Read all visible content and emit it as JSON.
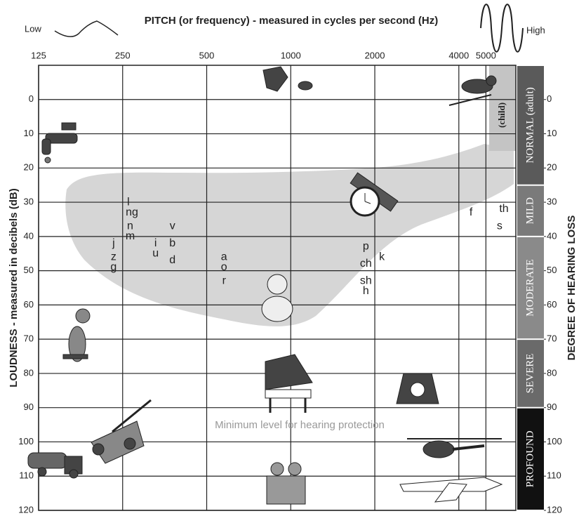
{
  "chart_data": {
    "type": "audiogram",
    "title": "PITCH (or frequency) - measured in cycles per second (Hz)",
    "low_label": "Low",
    "high_label": "High",
    "ylabel": "LOUDNESS - measured in decibels (dB)",
    "y2label": "DEGREE OF HEARING LOSS",
    "annotation": "Minimum level for hearing protection",
    "xscale": "log",
    "xlim": [
      125,
      6400
    ],
    "xticks": [
      125,
      250,
      500,
      1000,
      2000,
      4000,
      5000
    ],
    "ylim": [
      -10,
      120
    ],
    "yticks": [
      0,
      10,
      20,
      30,
      40,
      50,
      60,
      70,
      80,
      90,
      100,
      110,
      120
    ],
    "y2lim": [
      -10,
      120
    ],
    "y2ticks": [
      0,
      10,
      20,
      30,
      40,
      50,
      60,
      70,
      80,
      90,
      100,
      110,
      120
    ],
    "grid": true,
    "bands": [
      {
        "label": "NORMAL (adult)",
        "from": -10,
        "to": 25,
        "color": "#5a5a5a"
      },
      {
        "label": "MILD",
        "from": 25,
        "to": 40,
        "color": "#7a7a7a"
      },
      {
        "label": "MODERATE",
        "from": 40,
        "to": 70,
        "color": "#8a8a8a"
      },
      {
        "label": "SEVERE",
        "from": 70,
        "to": 90,
        "color": "#6a6a6a"
      },
      {
        "label": "PROFOUND",
        "from": 90,
        "to": 120,
        "color": "#111111"
      }
    ],
    "child_band": {
      "label": "(child)",
      "from": -10,
      "to": 15,
      "color": "#c4c4c4"
    },
    "sounds": {
      "labels": [
        "l",
        "ng",
        "n",
        "m",
        "j",
        "z",
        "g",
        "i",
        "u",
        "v",
        "b",
        "d",
        "a",
        "o",
        "r",
        "p",
        "ch",
        "sh",
        "h",
        "k",
        "f",
        "th",
        "s"
      ],
      "x": [
        262,
        270,
        266,
        266,
        232,
        232,
        232,
        328,
        328,
        377,
        377,
        377,
        577,
        577,
        577,
        1858,
        1858,
        1858,
        1858,
        2120,
        4420,
        5800,
        5600
      ],
      "values": [
        30,
        33,
        37,
        40,
        42,
        46,
        49,
        42,
        45,
        37,
        42,
        47,
        46,
        49,
        53,
        43,
        48,
        53,
        56,
        46,
        33,
        32,
        37
      ]
    }
  }
}
